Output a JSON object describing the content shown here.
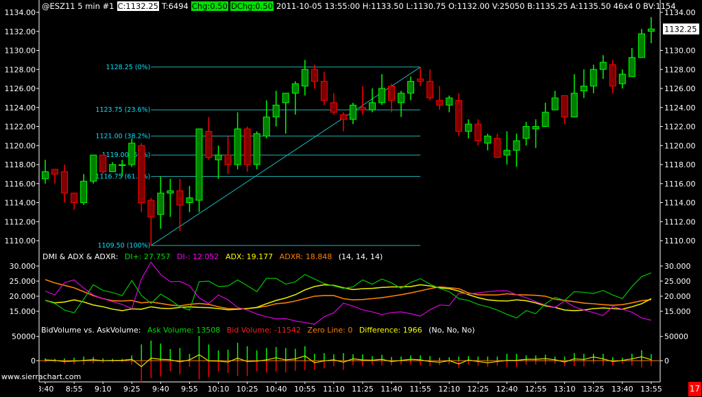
{
  "header": {
    "segments": [
      {
        "text": "@ESZ11  5 min   #1",
        "style": "plain"
      },
      {
        "text": "C:1132.25",
        "style": "inverse"
      },
      {
        "text": "T:6494",
        "style": "plain"
      },
      {
        "text": "Chg:0.50",
        "style": "green"
      },
      {
        "text": "DChg:0.50",
        "style": "green"
      },
      {
        "text": "2011-10-05 13:55:00 H:1133.50 L:1130.75 O:1132.00 V:25050 B:1135.25 A:1135.50 46x4 0 BV:1154",
        "style": "plain"
      }
    ]
  },
  "watermark": "www.sierrachart.com",
  "badge": "17",
  "colors": {
    "background": "#000000",
    "up_body": "#008000",
    "up_outline": "#00ff00",
    "down_body": "#800000",
    "down_outline": "#ff0000",
    "fib": "#1fb5b5",
    "fib_text": "#00e5ff",
    "di_plus": "#00c800",
    "di_minus": "#e000e0",
    "adx": "#e6e600",
    "adxr": "#ff8000",
    "ask": "#00ff00",
    "bid": "#ff0000",
    "zero": "#ff8000",
    "difference": "#e6e600",
    "axis": "#ffffff"
  },
  "chart_data": [
    {
      "type": "candlestick",
      "symbol": "@ESZ11",
      "interval": "5 min",
      "ohlc_fields": [
        "open",
        "high",
        "low",
        "close"
      ],
      "ohlc": [
        [
          1116.5,
          1118.5,
          1116,
          1117.25
        ],
        [
          1117.5,
          1117.5,
          1116,
          1117
        ],
        [
          1117.25,
          1118,
          1114,
          1115
        ],
        [
          1115,
          1115,
          1113.25,
          1114
        ],
        [
          1114,
          1117,
          1113.75,
          1116.25
        ],
        [
          1116.25,
          1119,
          1116,
          1119
        ],
        [
          1119,
          1119,
          1117,
          1117.25
        ],
        [
          1117.25,
          1118.25,
          1117.25,
          1118
        ],
        [
          1118,
          1118.5,
          1116.75,
          1118
        ],
        [
          1118,
          1120.75,
          1117.75,
          1120.25
        ],
        [
          1120,
          1120.25,
          1113,
          1114
        ],
        [
          1114.25,
          1114.5,
          1109.5,
          1112.5
        ],
        [
          1112.75,
          1116.75,
          1111.25,
          1115
        ],
        [
          1115,
          1116.5,
          1112.5,
          1115.25
        ],
        [
          1115.25,
          1116.5,
          1111,
          1113.75
        ],
        [
          1114,
          1115.75,
          1113,
          1114.5
        ],
        [
          1114.25,
          1121.75,
          1113,
          1121.75
        ],
        [
          1121.5,
          1123,
          1118.5,
          1118.75
        ],
        [
          1118.5,
          1120,
          1116.5,
          1119
        ],
        [
          1119,
          1121,
          1117,
          1118
        ],
        [
          1118,
          1123.5,
          1117.5,
          1121.75
        ],
        [
          1121.75,
          1122,
          1117.25,
          1118
        ],
        [
          1118,
          1121.5,
          1117.5,
          1121.25
        ],
        [
          1121,
          1124.75,
          1120.75,
          1123
        ],
        [
          1123,
          1125.75,
          1122,
          1124.25
        ],
        [
          1124.5,
          1125.5,
          1121.25,
          1125.5
        ],
        [
          1125.5,
          1126.75,
          1123.25,
          1126.5
        ],
        [
          1126.25,
          1129,
          1125.25,
          1128
        ],
        [
          1128,
          1128.5,
          1126,
          1126.75
        ],
        [
          1126.75,
          1127.75,
          1124.25,
          1124.75
        ],
        [
          1124.5,
          1125.5,
          1123.25,
          1123.5
        ],
        [
          1123.25,
          1123.5,
          1121.5,
          1122.75
        ],
        [
          1122.75,
          1124.5,
          1122.25,
          1124.25
        ],
        [
          1124,
          1126.25,
          1123.25,
          1123.75
        ],
        [
          1123.75,
          1126,
          1123.5,
          1124.5
        ],
        [
          1124.5,
          1127.5,
          1124.25,
          1126
        ],
        [
          1126.25,
          1126.5,
          1123.5,
          1124.75
        ],
        [
          1124.5,
          1125.75,
          1123,
          1125.5
        ],
        [
          1125.5,
          1127.25,
          1124.75,
          1126.75
        ],
        [
          1127,
          1128.25,
          1126.25,
          1126.75
        ],
        [
          1126.75,
          1128,
          1124.75,
          1125
        ],
        [
          1124.75,
          1126.25,
          1123.75,
          1124.25
        ],
        [
          1124.25,
          1125.25,
          1123.5,
          1125
        ],
        [
          1124.75,
          1125.5,
          1121,
          1121.5
        ],
        [
          1121.5,
          1122.75,
          1120.75,
          1122.25
        ],
        [
          1122.25,
          1122.75,
          1120,
          1120.5
        ],
        [
          1120.25,
          1121.25,
          1119.5,
          1121
        ],
        [
          1120.75,
          1121.25,
          1118.75,
          1118.75
        ],
        [
          1119,
          1121.5,
          1118,
          1119.5
        ],
        [
          1119.5,
          1121.25,
          1117.75,
          1120.5
        ],
        [
          1120.75,
          1122.5,
          1120,
          1122
        ],
        [
          1121.75,
          1122.75,
          1119.75,
          1122
        ],
        [
          1122,
          1124.5,
          1122,
          1123.5
        ],
        [
          1123.75,
          1125.75,
          1123.75,
          1125
        ],
        [
          1125.25,
          1125.25,
          1122.25,
          1123
        ],
        [
          1123,
          1127.5,
          1123,
          1125.5
        ],
        [
          1125.75,
          1128,
          1125,
          1126.25
        ],
        [
          1126.25,
          1128.5,
          1125.5,
          1128
        ],
        [
          1128,
          1129.5,
          1127,
          1128.75
        ],
        [
          1128.5,
          1129,
          1125.5,
          1126.25
        ],
        [
          1126.5,
          1128,
          1126,
          1127.5
        ],
        [
          1127.25,
          1130.25,
          1127.25,
          1129.25
        ],
        [
          1129.25,
          1132.25,
          1129.25,
          1131.75
        ],
        [
          1132,
          1133.5,
          1130.75,
          1132.25
        ]
      ],
      "ylim": [
        1110,
        1134
      ],
      "y_ticks_left": [
        "1134.00",
        "1132.00",
        "1130.00",
        "1128.00",
        "1126.00",
        "1124.00",
        "1122.00",
        "1120.00",
        "1118.00",
        "1116.00",
        "1114.00",
        "1112.00",
        "1110.00"
      ],
      "y_ticks_right": [
        "1134.00",
        "1130.00",
        "1128.00",
        "1126.00",
        "1124.00",
        "1122.00",
        "1120.00",
        "1118.00",
        "1116.00",
        "1114.00",
        "1112.00",
        "1110.00"
      ],
      "last_price_label": "1132.25",
      "last_price": 1132.25,
      "x_labels": [
        "8:40",
        "8:55",
        "9:10",
        "9:25",
        "9:40",
        "9:55",
        "10:10",
        "10:25",
        "10:40",
        "10:55",
        "11:10",
        "11:25",
        "11:40",
        "11:55",
        "12:10",
        "12:25",
        "12:40",
        "12:55",
        "13:10",
        "13:25",
        "13:40",
        "13:55"
      ],
      "fibonacci": {
        "levels": [
          {
            "price": 1128.25,
            "label": "1128.25 (0%)"
          },
          {
            "price": 1123.75,
            "label": "1123.75 (23.6%)"
          },
          {
            "price": 1121.0,
            "label": "1121.00 (38.2%)"
          },
          {
            "price": 1119.0,
            "label": "1119.00 (50%)"
          },
          {
            "price": 1116.75,
            "label": "1116.75 (61.8%)"
          },
          {
            "price": 1109.5,
            "label": "1109.50 (100%)"
          }
        ],
        "trend_from": {
          "bar": 12,
          "price": 1109.5
        },
        "trend_to": {
          "bar": 40,
          "price": 1128.25
        }
      }
    },
    {
      "type": "line",
      "title": "DMI & ADX & ADXR:",
      "params": "(14, 14, 14)",
      "legend": [
        "DI+: 27.757",
        "DI-: 12.052",
        "ADX: 19.177",
        "ADXR: 18.848"
      ],
      "ylim": [
        10,
        32
      ],
      "y_ticks": [
        "30.000",
        "25.000",
        "20.000",
        "15.000"
      ],
      "series": [
        {
          "name": "DI+",
          "values": [
            18.6,
            17.6,
            15.4,
            14.5,
            19.0,
            23.8,
            21.9,
            21.2,
            20.2,
            25.2,
            20.3,
            17.6,
            20.7,
            18.8,
            16.5,
            15.4,
            24.8,
            25.0,
            23.2,
            23.4,
            25.4,
            23.5,
            21.5,
            25.9,
            25.9,
            24.0,
            24.8,
            27.2,
            25.7,
            24.2,
            23.4,
            22.6,
            23.1,
            25.4,
            24.0,
            25.7,
            24.4,
            22.6,
            24.6,
            25.8,
            24.0,
            22.6,
            21.5,
            19.2,
            18.6,
            17.3,
            16.5,
            15.4,
            14.0,
            12.8,
            15.2,
            14.2,
            17.5,
            19.6,
            18.6,
            21.5,
            21.3,
            20.9,
            21.9,
            20.4,
            19.2,
            23.2,
            26.5,
            27.757
          ]
        },
        {
          "name": "DI-",
          "values": [
            21.7,
            20.4,
            24.5,
            25.4,
            22.7,
            20.4,
            19.2,
            18.2,
            17.3,
            15.9,
            25.7,
            31.3,
            27.2,
            24.8,
            24.9,
            23.5,
            19.4,
            17.6,
            20.4,
            18.8,
            16.3,
            15.4,
            14.1,
            13.2,
            12.5,
            12.6,
            11.8,
            11.3,
            10.7,
            13.2,
            14.5,
            17.7,
            16.7,
            15.5,
            14.8,
            13.9,
            14.6,
            14.8,
            14.2,
            13.4,
            15.5,
            17.1,
            16.9,
            21.0,
            20.8,
            21.1,
            21.5,
            21.8,
            21.8,
            20.5,
            19.5,
            18.2,
            17.1,
            16.3,
            18.4,
            16.5,
            15.4,
            14.6,
            13.6,
            16.6,
            15.7,
            14.7,
            12.8,
            12.052
          ]
        },
        {
          "name": "ADX",
          "values": [
            18.6,
            17.8,
            18.1,
            18.8,
            18.1,
            17.1,
            16.5,
            15.7,
            15.2,
            15.8,
            15.7,
            16.5,
            16.0,
            15.9,
            16.3,
            16.5,
            16.3,
            16.2,
            15.9,
            15.5,
            15.7,
            15.9,
            16.3,
            17.5,
            18.6,
            19.4,
            20.5,
            22.1,
            23.2,
            23.8,
            23.6,
            22.8,
            22.2,
            22.5,
            22.6,
            22.9,
            23.1,
            23.1,
            23.2,
            23.8,
            23.4,
            22.8,
            22.5,
            21.7,
            20.5,
            19.5,
            18.8,
            18.5,
            18.4,
            18.8,
            18.5,
            17.8,
            16.8,
            16.3,
            15.4,
            15.2,
            15.4,
            15.9,
            16.1,
            15.9,
            15.7,
            16.5,
            17.5,
            19.177
          ]
        },
        {
          "name": "ADXR",
          "values": [
            25.5,
            24.4,
            23.6,
            22.8,
            21.5,
            20.2,
            19.2,
            18.5,
            18.4,
            18.6,
            17.8,
            18.1,
            17.6,
            17.1,
            16.8,
            17.3,
            17.6,
            17.3,
            16.5,
            15.9,
            15.8,
            15.9,
            16.2,
            16.7,
            17.5,
            17.8,
            18.4,
            19.2,
            20.0,
            20.2,
            20.2,
            19.2,
            18.8,
            18.9,
            19.2,
            19.5,
            20.0,
            20.5,
            21.1,
            21.8,
            22.5,
            23.1,
            22.8,
            22.5,
            21.1,
            20.5,
            20.4,
            20.4,
            20.8,
            20.5,
            20.4,
            20.3,
            20.0,
            19.0,
            18.6,
            18.2,
            17.7,
            17.5,
            17.2,
            17.0,
            17.2,
            17.8,
            18.5,
            18.848
          ]
        }
      ]
    },
    {
      "type": "bar",
      "title": "BidVolume vs. AskVolume:",
      "params": "(No, No, No)",
      "legend": [
        "Ask Volume: 13508",
        "Bid Volume: -11542",
        "Zero Line: 0",
        "Difference: 1966"
      ],
      "y_ticks": [
        "50000",
        "0"
      ],
      "series": [
        {
          "name": "Ask Volume",
          "values": [
            4700,
            3800,
            4700,
            6100,
            8500,
            7500,
            4700,
            3800,
            3800,
            10900,
            33500,
            41500,
            35400,
            24000,
            26000,
            14200,
            51000,
            33500,
            21200,
            22700,
            36800,
            29700,
            21200,
            26000,
            28300,
            26000,
            24500,
            29700,
            14200,
            15600,
            13200,
            15600,
            13200,
            13200,
            9400,
            12300,
            7500,
            8500,
            10900,
            10900,
            9400,
            6100,
            7100,
            8500,
            9400,
            8500,
            8500,
            8500,
            14200,
            14200,
            10900,
            10900,
            12300,
            8500,
            8500,
            15600,
            14200,
            14200,
            14200,
            7500,
            6100,
            14200,
            21700,
            13508
          ]
        },
        {
          "name": "Bid Volume",
          "values": [
            -3300,
            -3300,
            -6600,
            -7100,
            -8000,
            -5700,
            -4700,
            -3300,
            -3300,
            -8000,
            -45800,
            -36300,
            -32600,
            -22200,
            -28300,
            -12700,
            -38700,
            -34000,
            -22200,
            -25500,
            -31600,
            -31600,
            -22200,
            -24500,
            -22200,
            -24500,
            -20800,
            -19800,
            -18400,
            -16000,
            -11300,
            -18900,
            -9400,
            -11800,
            -8500,
            -9400,
            -9400,
            -8000,
            -8000,
            -9400,
            -11300,
            -9400,
            -7100,
            -15100,
            -8000,
            -10400,
            -12700,
            -10400,
            -13700,
            -13700,
            -8000,
            -8000,
            -8000,
            -6600,
            -11300,
            -11800,
            -11800,
            -6600,
            -10400,
            -9400,
            -5700,
            -10400,
            -13700,
            -11542
          ]
        },
        {
          "name": "Zero Line",
          "value": 0
        }
      ]
    }
  ]
}
